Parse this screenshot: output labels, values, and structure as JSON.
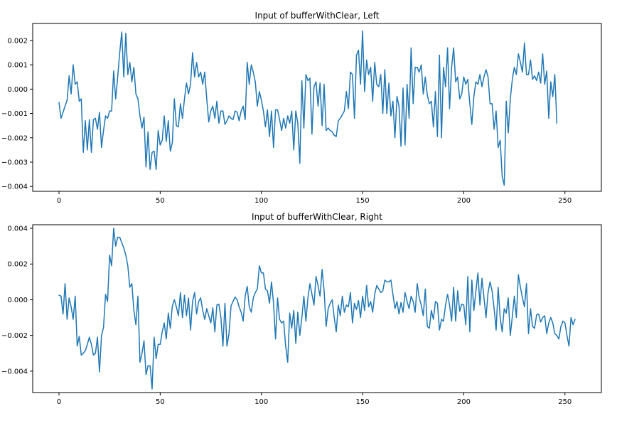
{
  "chart_data": [
    {
      "type": "line",
      "title": "Input of bufferWithClear, Left",
      "xlabel": "",
      "ylabel": "",
      "xlim": [
        -13,
        268
      ],
      "ylim": [
        -0.0042,
        0.0027
      ],
      "xticks": [
        0,
        50,
        100,
        150,
        200,
        250
      ],
      "xtick_labels": [
        "0",
        "50",
        "100",
        "150",
        "200",
        "250"
      ],
      "yticks": [
        0.002,
        0.001,
        0.0,
        -0.001,
        -0.002,
        -0.003,
        -0.004
      ],
      "ytick_labels": [
        "0.002",
        "0.001",
        "0.000",
        "−0.001",
        "−0.002",
        "−0.003",
        "−0.004"
      ],
      "grid": false,
      "line_color": "#1f77b4",
      "series": [
        {
          "values": [
            -0.00055,
            -0.0012,
            -0.00095,
            -0.0007,
            -0.00045,
            0.00055,
            -0.0002,
            0.001,
            0.0002,
            0.0003,
            -0.0005,
            -0.0004,
            -0.0026,
            -0.0013,
            -0.0025,
            -0.00125,
            -0.0026,
            -0.00125,
            -0.0012,
            -0.00165,
            -0.00095,
            -0.0024,
            -0.0017,
            -0.0011,
            -0.0012,
            -0.0009,
            -0.0009,
            0.00075,
            -0.0004,
            0.0005,
            0.0015,
            0.00235,
            0.0005,
            0.0023,
            0.0006,
            0.0011,
            0.0003,
            0.0009,
            -0.0002,
            -0.0004,
            -0.0011,
            -0.0016,
            -0.00115,
            -0.0032,
            -0.00175,
            -0.0033,
            -0.0026,
            -0.00255,
            -0.0033,
            -0.0017,
            -0.0023,
            -0.0021,
            -0.0011,
            -0.00215,
            -0.0013,
            -0.00255,
            -0.0022,
            -0.0004,
            -0.0015,
            -0.00155,
            -0.0006,
            -0.0012,
            -0.0004,
            0.00025,
            -0.0002,
            0.0002,
            0.0015,
            0.0005,
            0.0011,
            0.0005,
            0.0007,
            0.0002,
            0.0007,
            -0.0004,
            -0.00135,
            -0.0009,
            -0.0007,
            -0.0012,
            -0.0005,
            -0.0014,
            -0.0009,
            -0.0009,
            -0.00145,
            -0.0013,
            -0.0011,
            -0.0012,
            -0.00125,
            -0.0009,
            -0.00095,
            -0.0013,
            -0.0009,
            -0.0007,
            -0.00125,
            0.0011,
            0.0002,
            0.001,
            0.0007,
            0.0003,
            -0.0007,
            -0.0001,
            -0.00045,
            -0.0009,
            -0.00155,
            -0.00085,
            -0.00195,
            -0.0009,
            -0.0024,
            -0.00085,
            -0.00085,
            -0.00125,
            -0.0017,
            -0.0012,
            -0.0016,
            -0.0011,
            -0.0014,
            -0.0009,
            -0.0025,
            -0.0009,
            -0.0014,
            -0.00305,
            0.00035,
            -0.0016,
            0.0006,
            0.00035,
            0.00045,
            -0.00185,
            0.0001,
            0.0003,
            -0.0007,
            0.00025,
            -0.0015,
            0.0002,
            -0.0017,
            -0.0016,
            -0.0017,
            -0.00175,
            -0.0019,
            -0.00195,
            -0.0013,
            -0.0012,
            -0.00105,
            -0.0009,
            -0.0001,
            -0.0008,
            0.0007,
            0.0006,
            -0.0012,
            0.0014,
            0.0016,
            0.0002,
            0.0024,
            -0.0001,
            0.0012,
            0.0006,
            0.0009,
            -0.0005,
            0.0011,
            0.0002,
            0.0001,
            0.0006,
            -0.001,
            0.0008,
            -0.001,
            0.00025,
            -0.0011,
            -0.0005,
            -0.002,
            -0.0003,
            -0.0007,
            -0.00235,
            5e-05,
            -0.0023,
            0.0002,
            -0.0012,
            0.0017,
            -0.0006,
            0.0009,
            0.0009,
            0.0007,
            0.001,
            -0.0002,
            0.0005,
            -0.00025,
            -0.0006,
            -0.0005,
            -0.00155,
            -0.0001,
            -0.00195,
            0.0014,
            -0.002,
            0.0009,
            0.0001,
            0.0017,
            -0.0008,
            0.0009,
            0.0017,
            0.0003,
            0.0005,
            -0.0004,
            -0.0002,
            0.0005,
            0.0002,
            0.0004,
            -0.0006,
            -0.00145,
            -0.0003,
            0.0003,
            0.0002,
            0.0006,
            0.0001,
            0.0005,
            0.0008,
            0.0005,
            -0.0006,
            -0.0006,
            -0.00165,
            -0.0009,
            -0.0024,
            -0.0021,
            -0.0036,
            -0.00395,
            -0.0005,
            -0.0018,
            -0.0004,
            0.0004,
            0.0009,
            0.0006,
            0.00145,
            0.0011,
            0.0007,
            0.0019,
            0.0006,
            0.0006,
            0.0012,
            0.0004,
            0.00055,
            0.00035,
            0.0007,
            0.00025,
            0.00145,
            0.0002,
            0.00075,
            -0.0012,
            0.0003,
            -0.0003,
            0.0006,
            -0.0014
          ]
        }
      ]
    },
    {
      "type": "line",
      "title": "Input of bufferWithClear, Right",
      "xlabel": "",
      "ylabel": "",
      "xlim": [
        -13,
        268
      ],
      "ylim": [
        -0.0052,
        0.0042
      ],
      "xticks": [
        0,
        50,
        100,
        150,
        200,
        250
      ],
      "xtick_labels": [
        "0",
        "50",
        "100",
        "150",
        "200",
        "250"
      ],
      "yticks": [
        0.004,
        0.002,
        0.0,
        -0.002,
        -0.004
      ],
      "ytick_labels": [
        "0.004",
        "0.002",
        "0.000",
        "−0.002",
        "−0.004"
      ],
      "grid": false,
      "line_color": "#1f77b4",
      "series": [
        {
          "values": [
            0.00025,
            0.0002,
            -0.0008,
            0.0009,
            -0.0011,
            0.0001,
            -0.0004,
            -0.0011,
            0.0002,
            -0.0026,
            -0.00205,
            -0.0031,
            -0.003,
            -0.00285,
            -0.0025,
            -0.0021,
            -0.0025,
            -0.0031,
            -0.003,
            -0.0021,
            -0.00405,
            -0.002,
            -0.00155,
            0.0003,
            -0.0001,
            0.0025,
            0.0019,
            0.004,
            0.003,
            0.0035,
            0.0035,
            0.0032,
            0.0029,
            0.0025,
            0.0019,
            0.0007,
            0.0009,
            -0.0006,
            -0.0014,
            0.0002,
            -0.0035,
            -0.003,
            -0.0023,
            -0.0042,
            -0.0037,
            -0.0037,
            -0.005,
            -0.0021,
            -0.0033,
            -0.0025,
            -0.0025,
            -0.0018,
            -0.0013,
            -0.0022,
            -0.00075,
            -0.0016,
            -0.00035,
            0.0,
            -0.0004,
            -0.0009,
            0.0004,
            -0.001,
            0.00025,
            -0.0009,
            0.0001,
            -0.0017,
            -0.0001,
            0.0004,
            -0.0008,
            -0.0001,
            0.0001,
            -0.0006,
            -0.0011,
            -0.0005,
            -0.0009,
            -0.0013,
            -0.00045,
            -0.0018,
            -0.0003,
            -0.00025,
            -0.001,
            -0.0026,
            -0.0002,
            -0.0026,
            -0.0019,
            -0.00035,
            -0.0001,
            0.00015,
            0.0,
            -0.0004,
            -0.0007,
            -0.0012,
            0.0002,
            0.00075,
            -0.0004,
            -0.0007,
            0.0001,
            0.0004,
            0.0006,
            0.0019,
            0.0015,
            0.0015,
            0.0006,
            0.0005,
            -0.0002,
            0.001,
            -0.0002,
            -0.0022,
            0.0001,
            -0.0011,
            -0.0013,
            -0.0012,
            -0.0026,
            -0.0035,
            -0.00075,
            -0.0016,
            -0.0006,
            -0.00245,
            -0.0007,
            -0.002,
            -0.001,
            0.0002,
            -0.0012,
            0.0001,
            0.0009,
            0.0003,
            -0.0003,
            0.0013,
            0.0008,
            0.0002,
            0.0017,
            0.0005,
            -0.0015,
            -0.0005,
            -0.0002,
            0.0,
            -0.001,
            -0.0018,
            -0.0003,
            -0.0009,
            0.0002,
            -0.0007,
            -0.0003,
            -0.0004,
            0.0004,
            -0.0013,
            -0.0002,
            -0.00055,
            -5e-05,
            -0.001,
            0.0002,
            -0.0006,
            0.0008,
            -0.0004,
            -0.0001,
            -0.0007,
            0.0003,
            0.0008,
            0.0006,
            0.0004,
            0.0005,
            0.0011,
            0.001,
            0.001,
            0.0011,
            0.0003,
            -0.0005,
            -0.0001,
            -0.0008,
            -0.00015,
            -0.0007,
            0.0004,
            -0.0001,
            -0.0005,
            0.0002,
            -0.0001,
            -0.0007,
            0.0009,
            0.0001,
            -0.0003,
            -0.0009,
            0.0006,
            -0.0015,
            -0.0016,
            -0.0006,
            -0.0011,
            -0.0001,
            -0.0002,
            -0.0017,
            -0.0011,
            -0.0012,
            -0.0003,
            0.0003,
            -0.0003,
            -0.0012,
            0.0007,
            -0.0012,
            0.0005,
            -0.00065,
            -0.00025,
            -0.0003,
            -0.0014,
            0.0013,
            -0.0018,
            0.0011,
            -0.0006,
            0.0005,
            0.0015,
            -0.0003,
            0.0012,
            0.0001,
            -0.001,
            0.0004,
            0.001,
            0.0005,
            -0.0005,
            -0.0017,
            0.0007,
            -0.001,
            -0.0018,
            -0.0005,
            -0.00075,
            0.0001,
            -0.002,
            -0.00095,
            0.0002,
            -0.001,
            0.0014,
            0.0007,
            0.0001,
            -0.0004,
            0.0009,
            -0.0019,
            -0.0005,
            -0.0015,
            -0.0016,
            -0.00085,
            -0.0008,
            -0.00125,
            -0.001,
            -0.0009,
            -0.0019,
            -0.0013,
            -0.001,
            -0.0013,
            -0.0019,
            -0.002,
            -0.0022,
            -0.0015,
            -0.0012,
            -0.0013,
            -0.002,
            -0.0026,
            -0.001,
            -0.0014,
            -0.0011
          ]
        }
      ]
    }
  ]
}
